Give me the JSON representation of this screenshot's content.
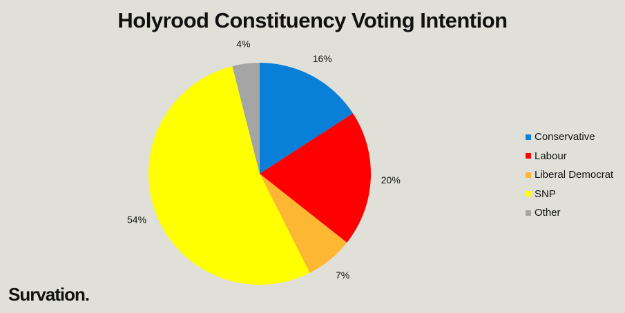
{
  "chart_data": {
    "type": "pie",
    "title": "Holyrood Constituency Voting Intention",
    "slices": [
      {
        "name": "Conservative",
        "value": 16,
        "label": "16%",
        "color": "#0a7fd8"
      },
      {
        "name": "Labour",
        "value": 20,
        "label": "20%",
        "color": "#ff0000"
      },
      {
        "name": "Liberal Democrat",
        "value": 7,
        "label": "7%",
        "color": "#fdb733"
      },
      {
        "name": "SNP",
        "value": 54,
        "label": "54%",
        "color": "#ffff00"
      },
      {
        "name": "Other",
        "value": 4,
        "label": "4%",
        "color": "#a5a5a5"
      }
    ],
    "start_angle": "12 o'clock, clockwise",
    "legend_position": "right"
  },
  "brand": "Survation."
}
